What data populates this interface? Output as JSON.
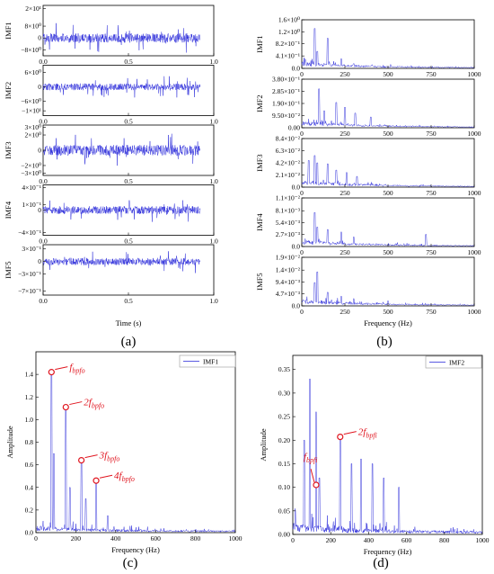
{
  "panels": {
    "a": {
      "caption": "(a)",
      "xlabel": "Time (s)",
      "xticks": [
        "0.0",
        "0.5",
        "1.0"
      ],
      "xlim": [
        0,
        1.0
      ],
      "data_end": 0.92,
      "subplots": [
        {
          "name": "IMF1",
          "yticks": [
            "2×10¹",
            "8×10⁰",
            "0",
            "−8×10⁰"
          ],
          "ytick_values": [
            20,
            8,
            0,
            -8
          ],
          "ylim": [
            -12,
            22
          ],
          "amp": 9
        },
        {
          "name": "IMF2",
          "yticks": [
            "6×10⁰",
            "0",
            "−6×10⁰",
            "−1×10¹"
          ],
          "ytick_values": [
            6,
            0,
            -6,
            -10
          ],
          "ylim": [
            -12,
            9
          ],
          "amp": 4
        },
        {
          "name": "IMF3",
          "yticks": [
            "3×10⁰",
            "2×10⁰",
            "0",
            "−2×10⁰",
            "−3×10⁰"
          ],
          "ytick_values": [
            3,
            2,
            0,
            -2,
            -3
          ],
          "ylim": [
            -3.3,
            3.3
          ],
          "amp": 2
        },
        {
          "name": "IMF4",
          "yticks": [
            "4×10⁻¹",
            "1×10⁻¹",
            "0",
            "−4×10⁻¹"
          ],
          "ytick_values": [
            4,
            1,
            0,
            -4
          ],
          "ylim": [
            -4.5,
            4.5
          ],
          "amp": 2
        },
        {
          "name": "IMF5",
          "yticks": [
            "3×10⁻¹",
            "0",
            "−3×10⁻¹",
            "−7×10⁻¹"
          ],
          "ytick_values": [
            3,
            0,
            -3,
            -7
          ],
          "ylim": [
            -8,
            4
          ],
          "amp": 2.5
        }
      ]
    },
    "b": {
      "caption": "(b)",
      "xlabel": "Frequency (Hz)",
      "xticks": [
        "0",
        "250",
        "500",
        "750",
        "1000"
      ],
      "xlim": [
        0,
        1000
      ],
      "subplots": [
        {
          "name": "IMF1",
          "yticks": [
            "1.6×10⁰",
            "1.2×10⁰",
            "8.2×10⁻¹",
            "4.1×10⁻¹",
            "0.0"
          ],
          "ytick_values": [
            1.6,
            1.2,
            0.82,
            0.41,
            0
          ],
          "ylim": [
            0,
            1.6
          ]
        },
        {
          "name": "IMF2",
          "yticks": [
            "3.80×10⁻¹",
            "2.85×10⁻¹",
            "1.90×10⁻¹",
            "9.50×10⁻²",
            "0.00"
          ],
          "ytick_values": [
            0.38,
            0.285,
            0.19,
            0.095,
            0
          ],
          "ylim": [
            0,
            0.38
          ]
        },
        {
          "name": "IMF3",
          "yticks": [
            "8.4×10⁻²",
            "6.3×10⁻²",
            "4.2×10⁻²",
            "2.1×10⁻²",
            "0.0"
          ],
          "ytick_values": [
            0.084,
            0.063,
            0.042,
            0.021,
            0
          ],
          "ylim": [
            0,
            0.084
          ]
        },
        {
          "name": "IMF4",
          "yticks": [
            "1.1×10⁻²",
            "8.1×10⁻³",
            "5.4×10⁻³",
            "2.7×10⁻³",
            "0.0"
          ],
          "ytick_values": [
            0.011,
            0.0081,
            0.0054,
            0.0027,
            0
          ],
          "ylim": [
            0,
            0.011
          ]
        },
        {
          "name": "IMF5",
          "yticks": [
            "1.9×10⁻²",
            "1.4×10⁻²",
            "9.4×10⁻³",
            "4.7×10⁻³",
            "0.0"
          ],
          "ytick_values": [
            0.019,
            0.014,
            0.0094,
            0.0047,
            0
          ],
          "ylim": [
            0,
            0.019
          ]
        }
      ]
    },
    "c": {
      "caption": "(c)",
      "xlabel": "Frequency (Hz)",
      "ylabel": "Amplitude",
      "legend": "IMF1",
      "xticks": [
        "0",
        "200",
        "400",
        "600",
        "800",
        "1000"
      ],
      "xtick_values": [
        0,
        200,
        400,
        600,
        800,
        1000
      ],
      "yticks": [
        "0.0",
        "0.2",
        "0.4",
        "0.6",
        "0.8",
        "1.0",
        "1.2",
        "1.4"
      ],
      "ytick_values": [
        0,
        0.2,
        0.4,
        0.6,
        0.8,
        1.0,
        1.2,
        1.4
      ],
      "xlim": [
        0,
        1000
      ],
      "ylim": [
        0,
        1.6
      ],
      "annotations": [
        {
          "label": "f",
          "sub": "bpfo",
          "x": 78,
          "y": 1.42
        },
        {
          "label": "2f",
          "sub": "bpfo",
          "x": 150,
          "y": 1.11
        },
        {
          "label": "3f",
          "sub": "bpfo",
          "x": 228,
          "y": 0.64
        },
        {
          "label": "4f",
          "sub": "bpfo",
          "x": 302,
          "y": 0.46
        }
      ]
    },
    "d": {
      "caption": "(d)",
      "xlabel": "Frequency (Hz)",
      "ylabel": "Amplitude",
      "legend": "IMF2",
      "xticks": [
        "0",
        "200",
        "400",
        "600",
        "800",
        "1000"
      ],
      "xtick_values": [
        0,
        200,
        400,
        600,
        800,
        1000
      ],
      "yticks": [
        "0.00",
        "0.05",
        "0.10",
        "0.15",
        "0.20",
        "0.25",
        "0.30",
        "0.35"
      ],
      "ytick_values": [
        0,
        0.05,
        0.1,
        0.15,
        0.2,
        0.25,
        0.3,
        0.35
      ],
      "xlim": [
        0,
        1000
      ],
      "ylim": [
        0,
        0.38
      ],
      "annotations": [
        {
          "label": "f",
          "sub": "bpfi",
          "x": 123,
          "y": 0.105
        },
        {
          "label": "2f",
          "sub": "bpfi",
          "x": 250,
          "y": 0.207
        }
      ]
    }
  },
  "chart_data": [
    {
      "type": "line",
      "panel": "a",
      "title": "",
      "xlabel": "Time (s)",
      "xlim": [
        0,
        1.0
      ],
      "series": [
        {
          "name": "IMF1",
          "ylim": [
            -12,
            22
          ]
        },
        {
          "name": "IMF2",
          "ylim": [
            -12,
            9
          ]
        },
        {
          "name": "IMF3",
          "ylim": [
            -3.3,
            3.3
          ]
        },
        {
          "name": "IMF4",
          "ylim": [
            -4.5,
            4.5
          ]
        },
        {
          "name": "IMF5",
          "ylim": [
            -8,
            4
          ]
        }
      ]
    },
    {
      "type": "line",
      "panel": "b",
      "title": "",
      "xlabel": "Frequency (Hz)",
      "xlim": [
        0,
        1000
      ],
      "series": [
        {
          "name": "IMF1",
          "ylim": [
            0,
            1.6
          ]
        },
        {
          "name": "IMF2",
          "ylim": [
            0,
            0.38
          ]
        },
        {
          "name": "IMF3",
          "ylim": [
            0,
            0.084
          ]
        },
        {
          "name": "IMF4",
          "ylim": [
            0,
            0.011
          ]
        },
        {
          "name": "IMF5",
          "ylim": [
            0,
            0.019
          ]
        }
      ]
    },
    {
      "type": "line",
      "panel": "c",
      "title": "",
      "xlabel": "Frequency (Hz)",
      "ylabel": "Amplitude",
      "xlim": [
        0,
        1000
      ],
      "ylim": [
        0,
        1.6
      ],
      "series": [
        {
          "name": "IMF1",
          "peaks": [
            {
              "x": 78,
              "y": 1.42
            },
            {
              "x": 150,
              "y": 1.11
            },
            {
              "x": 228,
              "y": 0.64
            },
            {
              "x": 302,
              "y": 0.46
            }
          ]
        }
      ]
    },
    {
      "type": "line",
      "panel": "d",
      "title": "",
      "xlabel": "Frequency (Hz)",
      "ylabel": "Amplitude",
      "xlim": [
        0,
        1000
      ],
      "ylim": [
        0,
        0.38
      ],
      "series": [
        {
          "name": "IMF2",
          "peaks": [
            {
              "x": 123,
              "y": 0.105
            },
            {
              "x": 250,
              "y": 0.207
            }
          ]
        }
      ]
    }
  ],
  "colors": {
    "signal": "#2323d8",
    "annotation": "#e0141e",
    "frame": "#000000"
  }
}
